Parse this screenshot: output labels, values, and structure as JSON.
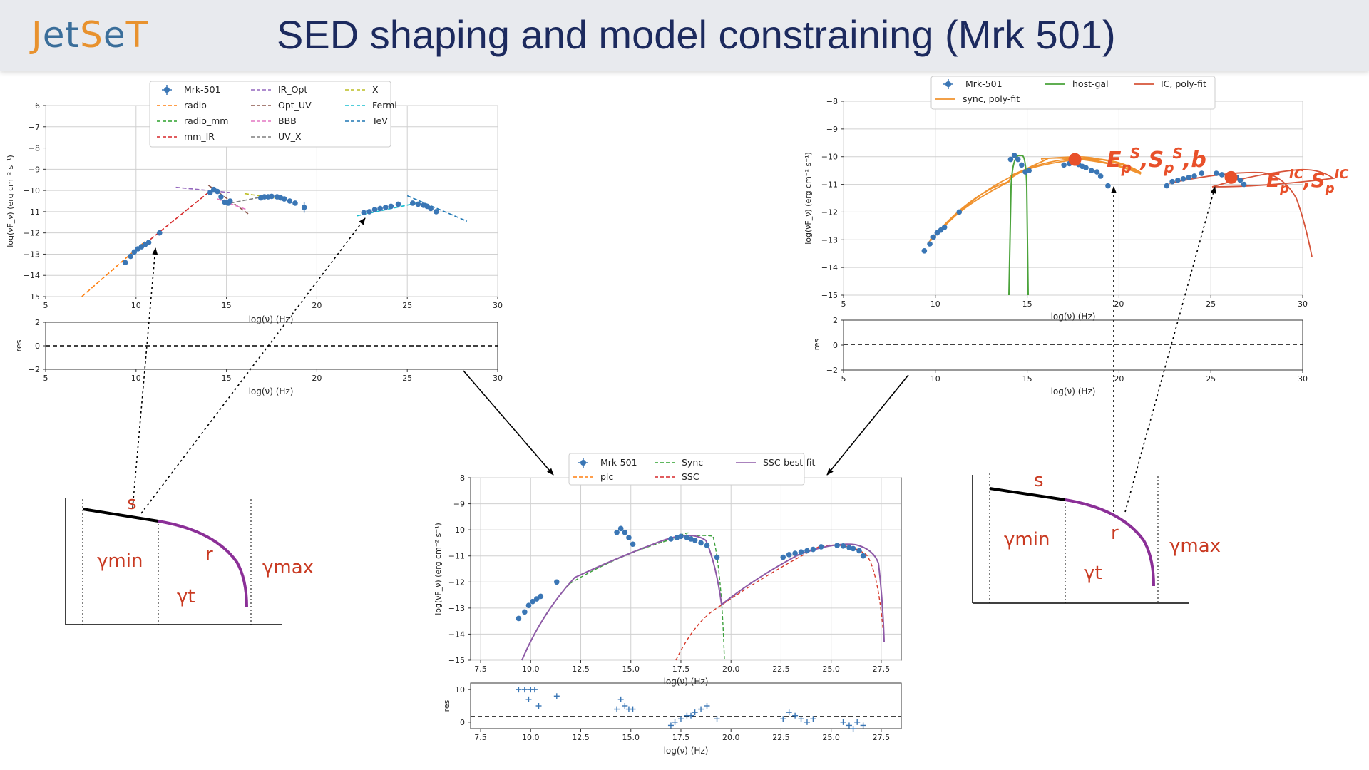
{
  "header": {
    "logo_parts": [
      "J",
      "et",
      "S",
      "e",
      "T"
    ],
    "title": "SED shaping and model constraining (Mrk 501)"
  },
  "colors": {
    "header_bg": "#e8eaee",
    "title": "#1c2a5e",
    "data_points": "#3a76b5",
    "annotation_red": "#e8502a",
    "curve_purple": "#8b2f97",
    "label_red": "#c93a22"
  },
  "chart_data": [
    {
      "type": "scatter",
      "name_key": "top-left",
      "xlabel": "log(ν)  (Hz)",
      "ylabel": "log(νF_ν)  (erg cm⁻² s⁻¹)",
      "xlim": [
        5,
        30
      ],
      "ylim": [
        -15,
        -6
      ],
      "xticks": [
        "5",
        "10",
        "15",
        "20",
        "25",
        "30"
      ],
      "yticks": [
        "−15",
        "−14",
        "−13",
        "−12",
        "−11",
        "−10",
        "−9",
        "−8",
        "−7",
        "−6"
      ],
      "grid": true,
      "legend": {
        "placement": "top",
        "entries": [
          "Mrk-501",
          "radio",
          "radio_mm",
          "mm_IR",
          "IR_Opt",
          "Opt_UV",
          "BBB",
          "UV_X",
          "X",
          "Fermi",
          "TeV"
        ]
      },
      "data_x": [
        9.4,
        9.7,
        9.9,
        10.1,
        10.3,
        10.5,
        10.7,
        11.3,
        14.1,
        14.3,
        14.5,
        14.7,
        14.9,
        15.1,
        15.2,
        16.9,
        17.1,
        17.3,
        17.5,
        17.8,
        18.0,
        18.2,
        18.5,
        18.8,
        19.3,
        22.6,
        22.9,
        23.2,
        23.5,
        23.8,
        24.1,
        24.5,
        25.3,
        25.6,
        25.9,
        26.1,
        26.3,
        26.6
      ],
      "data_y": [
        -13.4,
        -13.1,
        -12.9,
        -12.75,
        -12.65,
        -12.55,
        -12.45,
        -12.0,
        -10.1,
        -9.95,
        -10.05,
        -10.3,
        -10.55,
        -10.6,
        -10.5,
        -10.35,
        -10.3,
        -10.3,
        -10.28,
        -10.3,
        -10.35,
        -10.4,
        -10.5,
        -10.6,
        -10.8,
        -11.05,
        -11.0,
        -10.9,
        -10.85,
        -10.8,
        -10.75,
        -10.65,
        -10.6,
        -10.65,
        -10.7,
        -10.75,
        -10.85,
        -11.0
      ],
      "segments": [
        {
          "name": "radio",
          "color": "#ff7f0e",
          "x": [
            7.0,
            10.5
          ],
          "y": [
            -15.0,
            -12.4
          ]
        },
        {
          "name": "mm_IR",
          "color": "#d62728",
          "x": [
            10.8,
            14.0
          ],
          "y": [
            -12.3,
            -10.1
          ]
        },
        {
          "name": "IR_Opt",
          "color": "#9467bd",
          "x": [
            12.2,
            15.2
          ],
          "y": [
            -9.85,
            -10.1
          ]
        },
        {
          "name": "Opt_UV",
          "color": "#8c564b",
          "x": [
            14.0,
            16.2
          ],
          "y": [
            -9.75,
            -11.1
          ]
        },
        {
          "name": "BBB",
          "color": "#e377c2",
          "x": [
            14.5,
            16.1
          ],
          "y": [
            -10.4,
            -10.9
          ]
        },
        {
          "name": "UV_X",
          "color": "#7f7f7f",
          "x": [
            15.2,
            17.6
          ],
          "y": [
            -10.6,
            -10.2
          ]
        },
        {
          "name": "X",
          "color": "#bcbd22",
          "x": [
            16.0,
            18.4
          ],
          "y": [
            -10.15,
            -10.45
          ]
        },
        {
          "name": "Fermi",
          "color": "#17becf",
          "x": [
            22.2,
            25.5
          ],
          "y": [
            -11.2,
            -10.6
          ]
        },
        {
          "name": "TeV",
          "color": "#1f77b4",
          "x": [
            25.0,
            28.3
          ],
          "y": [
            -10.25,
            -11.45
          ]
        }
      ],
      "residual": {
        "ylabel": "res",
        "yticks": [
          "−2",
          "0",
          "2"
        ],
        "xlabel": "log(ν)  (Hz)"
      }
    },
    {
      "type": "scatter",
      "name_key": "top-right",
      "xlabel": "log(ν)  (Hz)",
      "ylabel": "log(νF_ν)  (erg cm⁻² s⁻¹)",
      "xlim": [
        5,
        30
      ],
      "ylim": [
        -15,
        -8
      ],
      "xticks": [
        "5",
        "10",
        "15",
        "20",
        "25",
        "30"
      ],
      "yticks": [
        "−15",
        "−14",
        "−13",
        "−12",
        "−11",
        "−10",
        "−9",
        "−8"
      ],
      "grid": true,
      "legend": {
        "placement": "top",
        "entries": [
          "Mrk-501",
          "host-gal",
          "IC, poly-fit",
          "sync, poly-fit"
        ]
      },
      "peaks": [
        {
          "label": "E_p^S,S_p^S,b",
          "x": 17.6,
          "y": -10.1
        },
        {
          "label": "E_p^IC,S_p^IC",
          "x": 26.1,
          "y": -10.75
        }
      ],
      "residual": {
        "ylabel": "res",
        "yticks": [
          "−2",
          "0",
          "2"
        ],
        "xlabel": "log(ν)  (Hz)"
      }
    },
    {
      "type": "line",
      "name_key": "bottom-center",
      "xlabel": "log(ν)  (Hz)",
      "ylabel": "log(νF_ν)  (erg cm⁻² s⁻¹)",
      "xlim": [
        7,
        28.5
      ],
      "ylim": [
        -15,
        -8
      ],
      "xticks": [
        "7.5",
        "10.0",
        "12.5",
        "15.0",
        "17.5",
        "20.0",
        "22.5",
        "25.0",
        "27.5"
      ],
      "yticks": [
        "−15",
        "−14",
        "−13",
        "−12",
        "−11",
        "−10",
        "−9",
        "−8"
      ],
      "grid": true,
      "legend": {
        "placement": "top",
        "entries": [
          "Mrk-501",
          "plc",
          "Sync",
          "SSC",
          "SSC-best-fit"
        ]
      },
      "residual": {
        "ylabel": "res",
        "yticks": [
          "0",
          "10"
        ],
        "xlabel": "log(ν)  (Hz)"
      }
    }
  ],
  "diagrams": {
    "left": {
      "labels": {
        "s": "s",
        "r": "r",
        "gmin": "γmin",
        "gt": "γt",
        "gmax": "γmax"
      }
    },
    "right": {
      "labels": {
        "s": "s",
        "r": "r",
        "gmin": "γmin",
        "gt": "γt",
        "gmax": "γmax"
      }
    }
  },
  "peak_labels": {
    "sync_main": "E",
    "sync_sub1": "p",
    "sync_sup1": "S",
    "sync_mid": ",S",
    "sync_sub2": "p",
    "sync_sup2": "S",
    "sync_end": ",b",
    "ic_main": "E",
    "ic_sub1": "p",
    "ic_sup1": "IC",
    "ic_mid": ",S",
    "ic_sub2": "p",
    "ic_sup2": "IC"
  }
}
